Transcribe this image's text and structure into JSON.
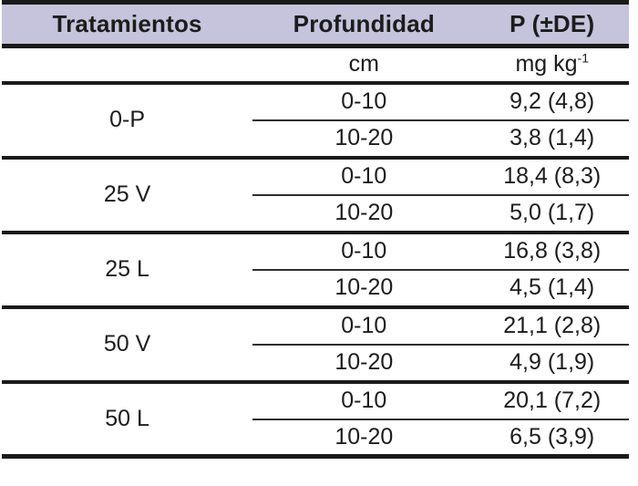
{
  "table": {
    "columns": [
      {
        "label": "Tratamientos"
      },
      {
        "label": "Profundidad"
      },
      {
        "label": "P (±DE)"
      }
    ],
    "units": {
      "depth": "cm",
      "value_base": "mg kg",
      "value_exp": "-1"
    },
    "groups": [
      {
        "treatment": "0-P",
        "rows": [
          {
            "depth": "0-10",
            "value": "9,2 (4,8)"
          },
          {
            "depth": "10-20",
            "value": "3,8 (1,4)"
          }
        ]
      },
      {
        "treatment": "25 V",
        "rows": [
          {
            "depth": "0-10",
            "value": "18,4 (8,3)"
          },
          {
            "depth": "10-20",
            "value": "5,0 (1,7)"
          }
        ]
      },
      {
        "treatment": "25 L",
        "rows": [
          {
            "depth": "0-10",
            "value": "16,8 (3,8)"
          },
          {
            "depth": "10-20",
            "value": "4,5 (1,4)"
          }
        ]
      },
      {
        "treatment": "50 V",
        "rows": [
          {
            "depth": "0-10",
            "value": "21,1 (2,8)"
          },
          {
            "depth": "10-20",
            "value": "4,9 (1,9)"
          }
        ]
      },
      {
        "treatment": "50 L",
        "rows": [
          {
            "depth": "0-10",
            "value": "20,1 (7,2)"
          },
          {
            "depth": "10-20",
            "value": "6,5 (3,9)"
          }
        ]
      }
    ],
    "colors": {
      "header_bg": "#c6c3dc",
      "border": "#1a1a1a",
      "text": "#1c1c1c"
    }
  }
}
